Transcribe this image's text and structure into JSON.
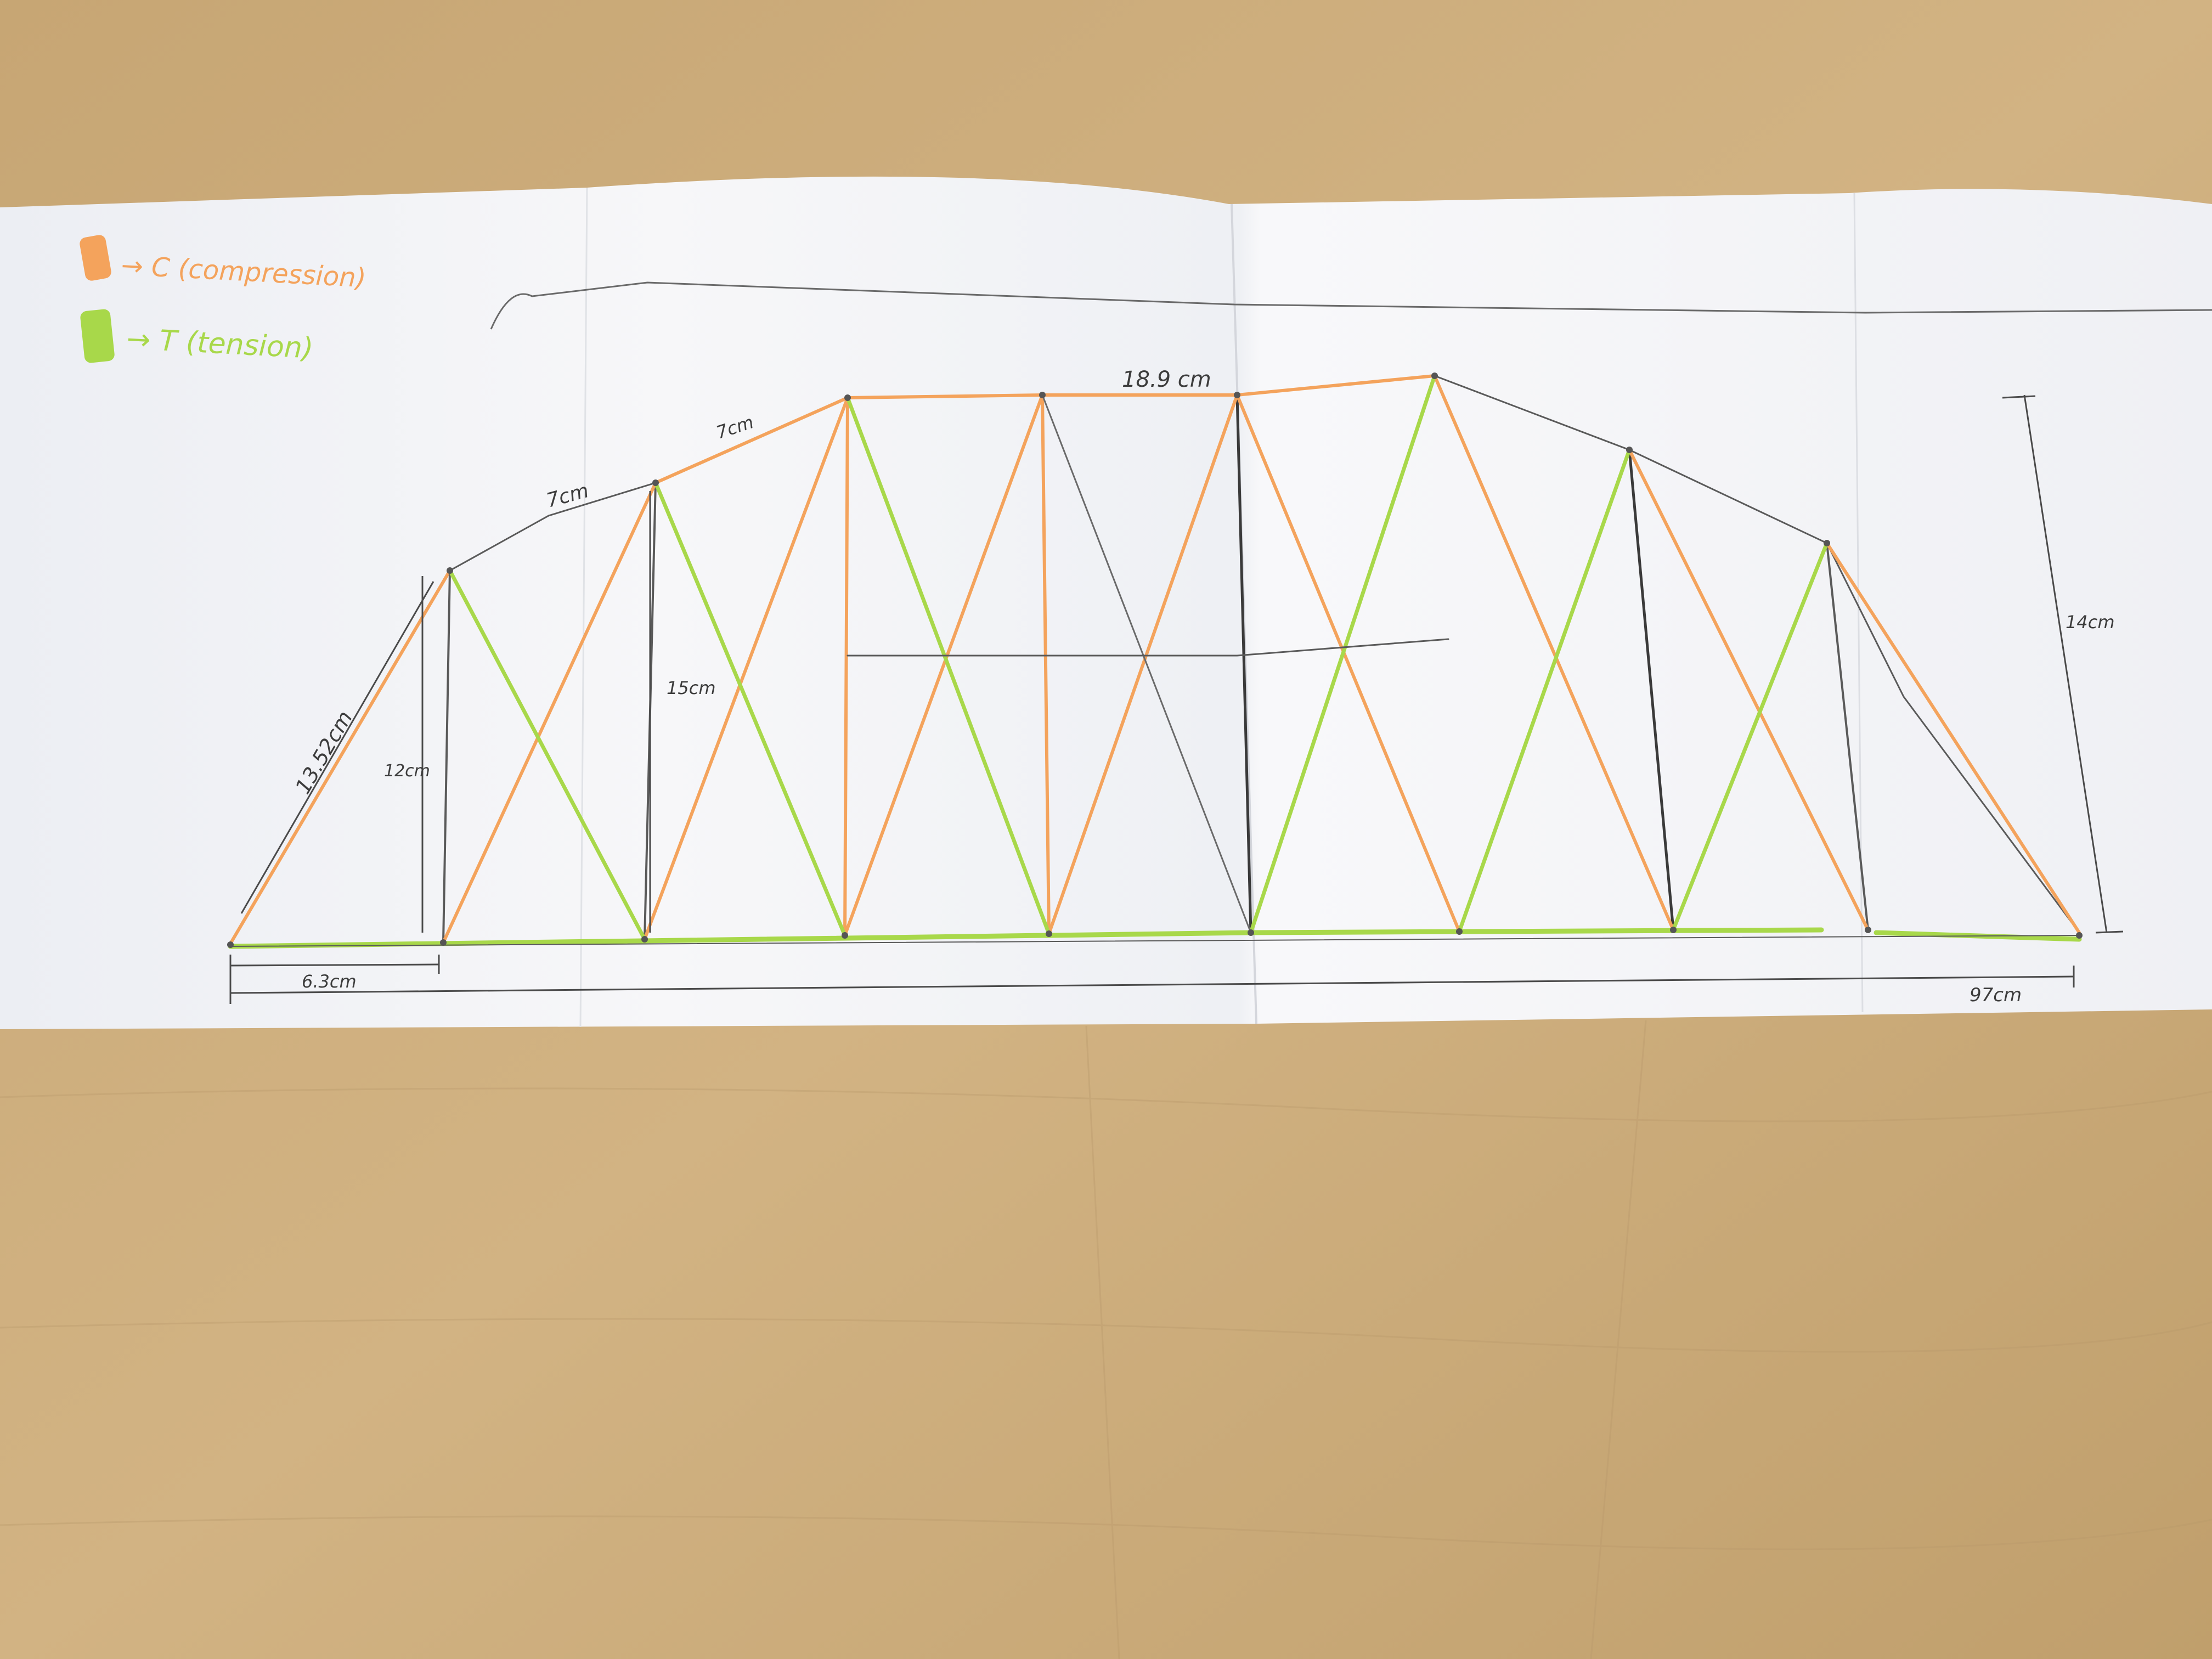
{
  "legend": {
    "compression": {
      "label": "→ C (compression)",
      "color": "#f4a35c"
    },
    "tension": {
      "label": "→ T (tension)",
      "color": "#a8d84a"
    }
  },
  "dimensions": {
    "top_chord": "18.9 cm",
    "upper_left_1": "7cm",
    "upper_left_2": "7cm",
    "end_diagonal": "13.52cm",
    "first_post": "12cm",
    "second_post": "15cm",
    "right_height": "14cm",
    "first_panel": "6.3cm",
    "total_span": "97cm"
  },
  "colors": {
    "table": "#c9a877",
    "paper": "#f4f4f6",
    "pencil": "#4a4a4a"
  }
}
